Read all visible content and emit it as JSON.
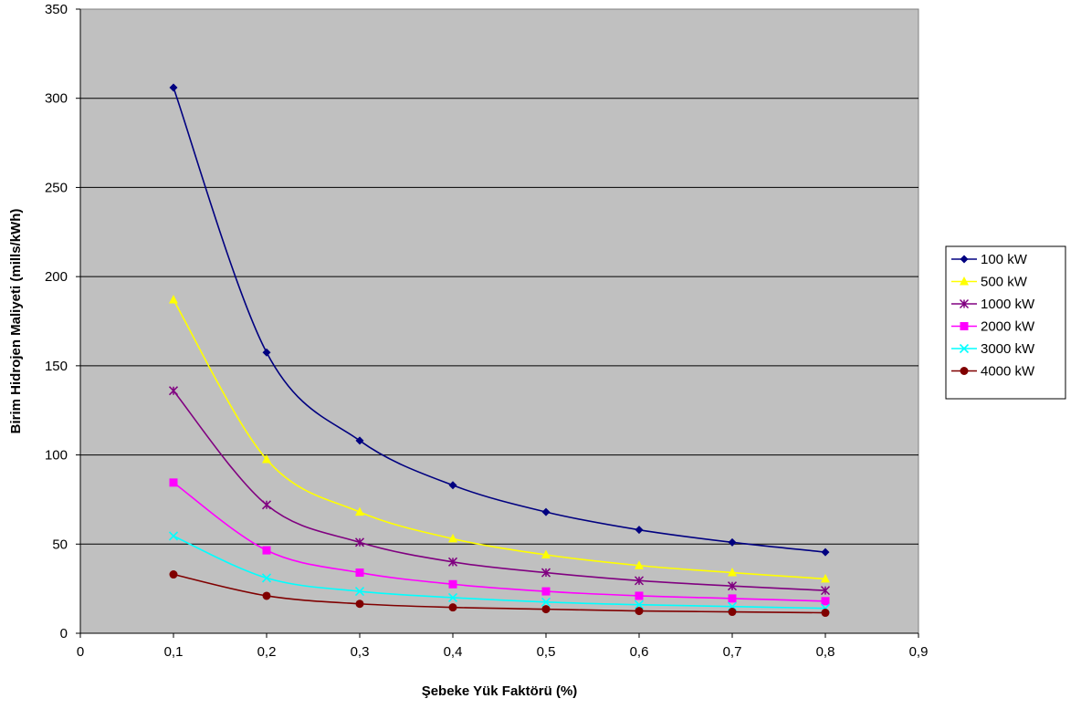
{
  "chart_data": {
    "type": "line",
    "title": "",
    "xlabel": "Şebeke Yük Faktörü (%)",
    "ylabel": "Birim Hidrojen Maliyeti (mills/kWh)",
    "xlim": [
      0,
      0.9
    ],
    "ylim": [
      0,
      350
    ],
    "x_ticks": [
      "0",
      "0,1",
      "0,2",
      "0,3",
      "0,4",
      "0,5",
      "0,6",
      "0,7",
      "0,8",
      "0,9"
    ],
    "y_ticks": [
      "0",
      "50",
      "100",
      "150",
      "200",
      "250",
      "300",
      "350"
    ],
    "grid": true,
    "legend_position": "right",
    "plot_background": "#c0c0c0",
    "x": [
      0.1,
      0.2,
      0.3,
      0.4,
      0.5,
      0.6,
      0.7,
      0.8
    ],
    "series": [
      {
        "name": "100 kW",
        "color": "#000080",
        "marker": "diamond",
        "values": [
          306,
          157.5,
          108,
          83,
          68,
          58,
          51,
          45.5
        ]
      },
      {
        "name": "500 kW",
        "color": "#ffff00",
        "marker": "triangle",
        "values": [
          187,
          97.5,
          68,
          53,
          44,
          38,
          34,
          30.5
        ]
      },
      {
        "name": "1000 kW",
        "color": "#800080",
        "marker": "asterisk",
        "values": [
          136,
          72,
          51,
          40,
          34,
          29.5,
          26.5,
          24
        ]
      },
      {
        "name": "2000 kW",
        "color": "#ff00ff",
        "marker": "square",
        "values": [
          84.5,
          46.5,
          34,
          27.5,
          23.5,
          21,
          19.5,
          18
        ]
      },
      {
        "name": "3000 kW",
        "color": "#00ffff",
        "marker": "x",
        "values": [
          54.5,
          31,
          23.5,
          20,
          17.5,
          16,
          15,
          14
        ]
      },
      {
        "name": "4000 kW",
        "color": "#800000",
        "marker": "circle",
        "values": [
          33,
          21,
          16.5,
          14.5,
          13.5,
          12.5,
          12,
          11.5
        ]
      }
    ]
  }
}
